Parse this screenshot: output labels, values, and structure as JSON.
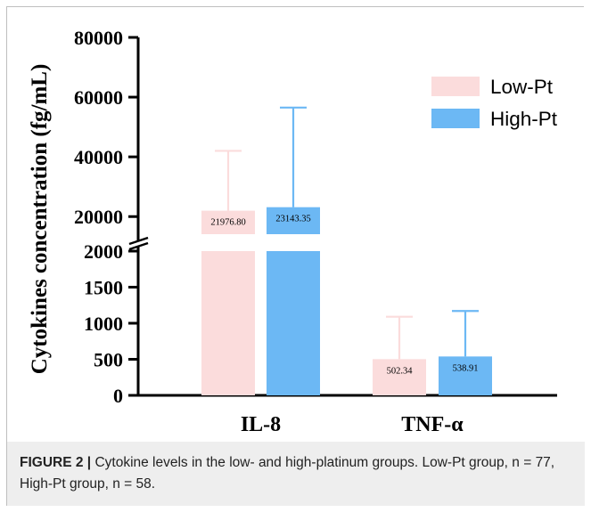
{
  "caption": {
    "label": "FIGURE 2 |",
    "text": " Cytokine levels in the low- and high-platinum groups. Low-Pt group, n = 77, High-Pt group, n = 58."
  },
  "chart_data": {
    "type": "bar",
    "ylabel": "Cytokines concentration (fg/mL)",
    "categories": [
      "IL-8",
      "TNF-α"
    ],
    "axis_break": {
      "lower_range": [
        0,
        2000
      ],
      "upper_range": [
        15000,
        80000
      ]
    },
    "lower_ticks": [
      "0",
      "500",
      "1000",
      "1500",
      "2000"
    ],
    "upper_ticks": [
      "20000",
      "40000",
      "60000",
      "80000"
    ],
    "legend": {
      "position": "top-right",
      "entries": [
        "Low-Pt",
        "High-Pt"
      ]
    },
    "series": [
      {
        "name": "Low-Pt",
        "color": "#fbdcdc",
        "values": [
          21976.8,
          502.34
        ],
        "error_upper": [
          42000,
          1090
        ],
        "data_labels": [
          "21976.80",
          "502.34"
        ]
      },
      {
        "name": "High-Pt",
        "color": "#6cb8f4",
        "values": [
          23143.35,
          538.91
        ],
        "error_upper": [
          56500,
          1170
        ],
        "data_labels": [
          "23143.35",
          "538.91"
        ]
      }
    ]
  }
}
